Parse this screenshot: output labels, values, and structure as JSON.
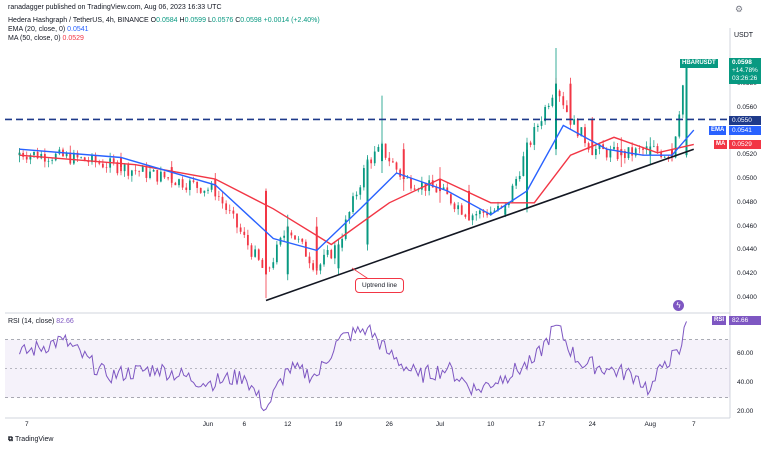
{
  "header": {
    "publish_line": "ranadagger published on TradingView.com, Aug 06, 2023 16:33 UTC",
    "symbol_line": "Hedera Hashgraph / TetherUS, 4h, BINANCE",
    "ohlc": {
      "o_label": "O",
      "o": "0.0584",
      "h_label": "H",
      "h": "0.0599",
      "l_label": "L",
      "l": "0.0576",
      "c_label": "C",
      "c": "0.0598",
      "change": "+0.0014 (+2.40%)"
    },
    "ema_label": "EMA (20, close, 0)",
    "ema_value": "0.0541",
    "ma_label": "MA (50, close, 0)",
    "ma_value": "0.0529",
    "rsi_label": "RSI (14, close)",
    "rsi_value": "82.66",
    "currency": "USDT"
  },
  "price_tags": {
    "symbol": "HBARUSDT",
    "price": "0.0598",
    "change_pct": "+14.78%",
    "countdown": "03:26:26",
    "ema_name": "EMA",
    "ema_val": "0.0541",
    "ma_name": "MA",
    "ma_val": "0.0529",
    "rsi_name": "RSI",
    "rsi_val": "82.66"
  },
  "annotation": {
    "label": "Uptrend line"
  },
  "footer": {
    "logo": "TradingView"
  },
  "colors": {
    "up": "#089981",
    "down": "#f23645",
    "ema": "#2962ff",
    "ma": "#f23645",
    "rsi": "#7e57c2",
    "level": "#1e3a8a",
    "trend": "#131722"
  },
  "chart_data": [
    {
      "type": "candlestick",
      "title": "Hedera Hashgraph / TetherUS, 4h, BINANCE",
      "ylabel": "USDT",
      "ylim": [
        0.039,
        0.0615
      ],
      "y_ticks": [
        "0.0580",
        "0.0560",
        "0.0520",
        "0.0500",
        "0.0480",
        "0.0460",
        "0.0440",
        "0.0420",
        "0.0400"
      ],
      "y_tick_values": [
        0.058,
        0.056,
        0.052,
        0.05,
        0.048,
        0.046,
        0.044,
        0.042,
        0.04
      ],
      "x_ticks": [
        "7",
        "Jun",
        "6",
        "12",
        "19",
        "26",
        "Jul",
        "10",
        "17",
        "24",
        "Aug",
        "7"
      ],
      "x_tick_dates": [
        "2023-05-07",
        "2023-06-01",
        "2023-06-06",
        "2023-06-12",
        "2023-06-19",
        "2023-06-26",
        "2023-07-03",
        "2023-07-10",
        "2023-07-17",
        "2023-07-24",
        "2023-08-01",
        "2023-08-07"
      ],
      "horizontal_level": {
        "value": 0.055,
        "label": "0.0550",
        "style": "dashed"
      },
      "trendline": {
        "start": {
          "date": "2023-06-09",
          "value": 0.0398
        },
        "end": {
          "date": "2023-08-07",
          "value": 0.0525
        }
      },
      "series": [
        {
          "name": "EMA (20, close, 0)",
          "last": 0.0541,
          "points": [
            [
              "2023-05-06",
              0.0525
            ],
            [
              "2023-05-20",
              0.0518
            ],
            [
              "2023-06-02",
              0.0495
            ],
            [
              "2023-06-10",
              0.045
            ],
            [
              "2023-06-16",
              0.044
            ],
            [
              "2023-06-22",
              0.0475
            ],
            [
              "2023-06-27",
              0.0505
            ],
            [
              "2023-07-04",
              0.049
            ],
            [
              "2023-07-10",
              0.047
            ],
            [
              "2023-07-15",
              0.049
            ],
            [
              "2023-07-20",
              0.0545
            ],
            [
              "2023-07-26",
              0.0525
            ],
            [
              "2023-07-31",
              0.052
            ],
            [
              "2023-08-04",
              0.052
            ],
            [
              "2023-08-07",
              0.0541
            ]
          ]
        },
        {
          "name": "MA (50, close, 0)",
          "last": 0.0529,
          "points": [
            [
              "2023-05-06",
              0.052
            ],
            [
              "2023-05-22",
              0.0512
            ],
            [
              "2023-06-02",
              0.05
            ],
            [
              "2023-06-10",
              0.0475
            ],
            [
              "2023-06-18",
              0.0445
            ],
            [
              "2023-06-26",
              0.048
            ],
            [
              "2023-07-03",
              0.05
            ],
            [
              "2023-07-10",
              0.048
            ],
            [
              "2023-07-16",
              0.048
            ],
            [
              "2023-07-21",
              0.052
            ],
            [
              "2023-07-27",
              0.0535
            ],
            [
              "2023-08-02",
              0.0522
            ],
            [
              "2023-08-07",
              0.0529
            ]
          ]
        }
      ],
      "candles_approx": [
        [
          "2023-05-06",
          0.052,
          0.0526,
          0.0514,
          0.0522
        ],
        [
          "2023-05-13",
          0.0522,
          0.0528,
          0.0515,
          0.0518
        ],
        [
          "2023-05-20",
          0.0518,
          0.0522,
          0.0505,
          0.051
        ],
        [
          "2023-05-27",
          0.051,
          0.0515,
          0.0495,
          0.05
        ],
        [
          "2023-06-02",
          0.05,
          0.0505,
          0.0485,
          0.049
        ],
        [
          "2023-06-09",
          0.049,
          0.0492,
          0.04,
          0.042
        ],
        [
          "2023-06-12",
          0.042,
          0.047,
          0.0415,
          0.046
        ],
        [
          "2023-06-16",
          0.046,
          0.0468,
          0.042,
          0.0425
        ],
        [
          "2023-06-19",
          0.0425,
          0.045,
          0.042,
          0.0445
        ],
        [
          "2023-06-23",
          0.0445,
          0.052,
          0.044,
          0.0515
        ],
        [
          "2023-06-25",
          0.0515,
          0.057,
          0.0505,
          0.0525
        ],
        [
          "2023-06-28",
          0.0525,
          0.053,
          0.049,
          0.05
        ],
        [
          "2023-07-03",
          0.05,
          0.051,
          0.048,
          0.049
        ],
        [
          "2023-07-07",
          0.049,
          0.0495,
          0.0465,
          0.047
        ],
        [
          "2023-07-12",
          0.047,
          0.048,
          0.0468,
          0.0475
        ],
        [
          "2023-07-15",
          0.0475,
          0.053,
          0.0472,
          0.0525
        ],
        [
          "2023-07-19",
          0.0525,
          0.061,
          0.052,
          0.058
        ],
        [
          "2023-07-21",
          0.058,
          0.0585,
          0.0545,
          0.055
        ],
        [
          "2023-07-24",
          0.055,
          0.0552,
          0.052,
          0.0525
        ],
        [
          "2023-07-28",
          0.0525,
          0.0535,
          0.051,
          0.052
        ],
        [
          "2023-08-01",
          0.052,
          0.0535,
          0.0512,
          0.0525
        ],
        [
          "2023-08-04",
          0.0525,
          0.053,
          0.0515,
          0.052
        ],
        [
          "2023-08-06",
          0.052,
          0.0599,
          0.0518,
          0.0598
        ]
      ]
    },
    {
      "type": "line",
      "title": "RSI (14, close)",
      "ylim": [
        20,
        85
      ],
      "y_ticks": [
        "60.00",
        "40.00",
        "20.00"
      ],
      "y_tick_values": [
        60,
        40,
        20
      ],
      "bands": [
        30,
        70
      ],
      "last": 82.66,
      "points": [
        [
          "2023-05-06",
          60
        ],
        [
          "2023-05-12",
          70
        ],
        [
          "2023-05-18",
          45
        ],
        [
          "2023-05-25",
          50
        ],
        [
          "2023-06-01",
          40
        ],
        [
          "2023-06-06",
          45
        ],
        [
          "2023-06-09",
          22
        ],
        [
          "2023-06-12",
          50
        ],
        [
          "2023-06-16",
          45
        ],
        [
          "2023-06-19",
          70
        ],
        [
          "2023-06-23",
          78
        ],
        [
          "2023-06-26",
          60
        ],
        [
          "2023-06-30",
          45
        ],
        [
          "2023-07-04",
          50
        ],
        [
          "2023-07-08",
          35
        ],
        [
          "2023-07-12",
          45
        ],
        [
          "2023-07-16",
          55
        ],
        [
          "2023-07-19",
          80
        ],
        [
          "2023-07-22",
          55
        ],
        [
          "2023-07-26",
          50
        ],
        [
          "2023-07-30",
          45
        ],
        [
          "2023-08-01",
          35
        ],
        [
          "2023-08-03",
          55
        ],
        [
          "2023-08-05",
          60
        ],
        [
          "2023-08-06",
          82.66
        ]
      ]
    }
  ]
}
